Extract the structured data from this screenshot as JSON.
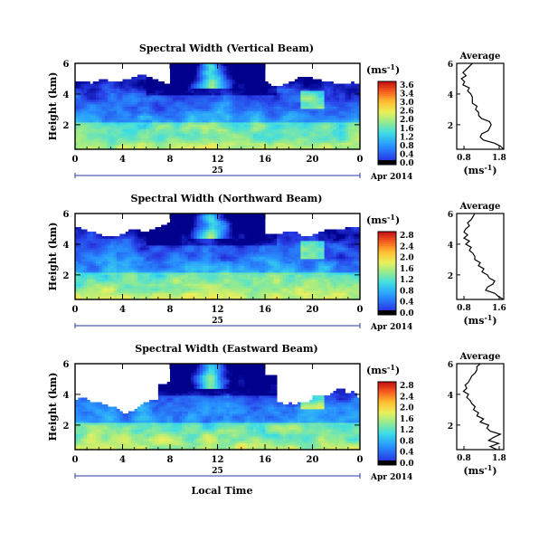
{
  "chart_data": [
    {
      "type": "heatmap",
      "title": "Spectral Width (Vertical Beam)",
      "ylabel": "Height (km)",
      "yticks": [
        "6",
        "4",
        "2"
      ],
      "xticks": [
        "0",
        "4",
        "8",
        "12",
        "16",
        "20",
        "0"
      ],
      "xlim": [
        0,
        24
      ],
      "ylim": [
        0.4,
        6
      ],
      "date_day": "25",
      "date_month_year": "Apr 2014",
      "colorbar": {
        "unit_base": "(ms",
        "unit_exp": "-1",
        "unit_close": ")",
        "ticks": [
          "3.6",
          "3.4",
          "3.0",
          "2.6",
          "2.0",
          "1.6",
          "1.2",
          "0.8",
          "0.4",
          "0.0"
        ],
        "colors": [
          "#d7191c",
          "#f46d43",
          "#fdae61",
          "#fee08b",
          "#d9ef8b",
          "#a6d96a",
          "#66c2a5",
          "#3288bd",
          "#2c5fd6",
          "#000000"
        ]
      },
      "average": {
        "title": "Average",
        "xticks": [
          "0.8",
          "1.8"
        ],
        "yticks": [
          "6",
          "4",
          "2"
        ],
        "xlabel_base": "(ms",
        "xlabel_exp": "-1",
        "xlabel_close": ")",
        "xlim": [
          0.5,
          2.0
        ],
        "height": [
          0.4,
          0.6,
          0.8,
          1.0,
          1.2,
          1.4,
          1.6,
          1.8,
          2.0,
          2.2,
          2.4,
          2.6,
          2.8,
          3.0,
          3.2,
          3.4,
          3.6,
          3.8,
          4.0,
          4.2,
          4.4,
          4.6,
          4.8,
          5.0,
          5.2,
          5.4,
          5.6,
          5.8,
          6.0
        ],
        "value": [
          2.0,
          1.9,
          1.7,
          1.35,
          1.25,
          1.3,
          1.5,
          1.55,
          1.6,
          1.55,
          1.3,
          1.2,
          1.2,
          1.1,
          1.15,
          1.0,
          1.0,
          1.0,
          0.95,
          0.85,
          0.9,
          0.7,
          0.75,
          0.65,
          0.8,
          0.7,
          0.8,
          0.9,
          1.0
        ]
      }
    },
    {
      "type": "heatmap",
      "title": "Spectral Width (Northward Beam)",
      "ylabel": "Height (km)",
      "yticks": [
        "6",
        "4",
        "2"
      ],
      "xticks": [
        "0",
        "4",
        "8",
        "12",
        "16",
        "20",
        "0"
      ],
      "xlim": [
        0,
        24
      ],
      "ylim": [
        0.4,
        6
      ],
      "date_day": "25",
      "date_month_year": "Apr 2014",
      "colorbar": {
        "unit_base": "(ms",
        "unit_exp": "-1",
        "unit_close": ")",
        "ticks": [
          "2.8",
          "2.4",
          "2.0",
          "1.6",
          "1.2",
          "0.8",
          "0.4",
          "0.0"
        ],
        "colors": [
          "#d7191c",
          "#f46d43",
          "#fdae61",
          "#fee08b",
          "#d9ef8b",
          "#a6d96a",
          "#66c2a5",
          "#3288bd",
          "#2c5fd6",
          "#000000"
        ]
      },
      "average": {
        "title": "Average",
        "xticks": [
          "0.8",
          "1.6"
        ],
        "yticks": [
          "6",
          "4",
          "2"
        ],
        "xlabel_base": "(ms",
        "xlabel_exp": "-1",
        "xlabel_close": ")",
        "xlim": [
          0.5,
          1.8
        ],
        "height": [
          0.4,
          0.6,
          0.8,
          1.0,
          1.2,
          1.4,
          1.6,
          1.8,
          2.0,
          2.2,
          2.4,
          2.6,
          2.8,
          3.0,
          3.2,
          3.4,
          3.6,
          3.8,
          4.0,
          4.2,
          4.4,
          4.6,
          4.8,
          5.0,
          5.2,
          5.4,
          5.6,
          5.8,
          6.0
        ],
        "value": [
          1.8,
          1.65,
          1.55,
          1.3,
          1.35,
          1.5,
          1.55,
          1.4,
          1.35,
          1.2,
          1.25,
          1.1,
          1.15,
          1.0,
          1.0,
          0.95,
          0.85,
          0.9,
          0.75,
          0.85,
          0.7,
          0.8,
          0.7,
          0.75,
          0.85,
          0.8,
          0.9,
          0.95,
          1.0
        ]
      }
    },
    {
      "type": "heatmap",
      "title": "Spectral Width (Eastward Beam)",
      "ylabel": "Height (km)",
      "yticks": [
        "6",
        "4",
        "2"
      ],
      "xticks": [
        "0",
        "4",
        "8",
        "12",
        "16",
        "20",
        "0"
      ],
      "xlim": [
        0,
        24
      ],
      "ylim": [
        0.4,
        6
      ],
      "date_day": "25",
      "date_month_year": "Apr 2014",
      "xlabel": "Local Time",
      "colorbar": {
        "unit_base": "(ms",
        "unit_exp": "-1",
        "unit_close": ")",
        "ticks": [
          "2.8",
          "2.4",
          "2.0",
          "1.6",
          "1.2",
          "0.8",
          "0.4",
          "0.0"
        ],
        "colors": [
          "#d7191c",
          "#f46d43",
          "#fdae61",
          "#fee08b",
          "#d9ef8b",
          "#a6d96a",
          "#66c2a5",
          "#3288bd",
          "#2c5fd6",
          "#000000"
        ]
      },
      "average": {
        "title": "Average",
        "xticks": [
          "0.8",
          "1.8"
        ],
        "yticks": [
          "6",
          "4",
          "2"
        ],
        "xlabel_base": "(ms",
        "xlabel_exp": "-1",
        "xlabel_close": ")",
        "xlim": [
          0.5,
          1.9
        ],
        "height": [
          0.4,
          0.6,
          0.8,
          1.0,
          1.2,
          1.4,
          1.6,
          1.8,
          2.0,
          2.2,
          2.4,
          2.6,
          2.8,
          3.0,
          3.2,
          3.4,
          3.6,
          3.8,
          4.0,
          4.2,
          4.4,
          4.6,
          4.8,
          5.0,
          5.2,
          5.4,
          5.6,
          5.8,
          6.0
        ],
        "value": [
          1.7,
          1.5,
          1.75,
          1.45,
          1.6,
          1.8,
          1.5,
          1.4,
          1.45,
          1.2,
          1.3,
          1.1,
          1.15,
          1.0,
          1.05,
          0.95,
          0.9,
          0.8,
          0.85,
          0.7,
          0.8,
          0.75,
          0.85,
          0.9,
          0.95,
          1.05,
          1.1,
          1.1,
          1.2
        ]
      }
    }
  ]
}
